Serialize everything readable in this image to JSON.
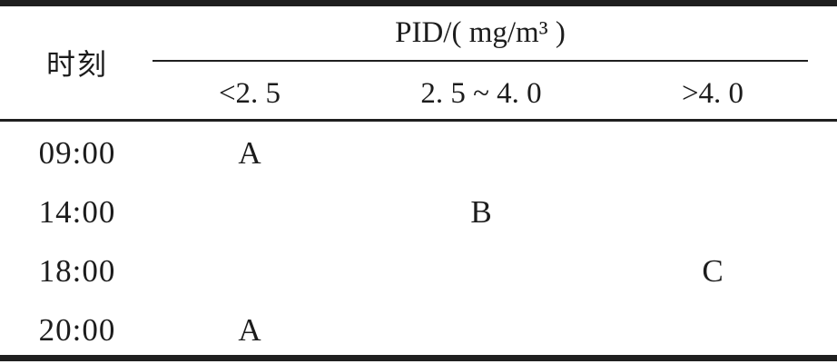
{
  "figure": {
    "corner_header": "时刻",
    "group_header": "PID/( mg/m³ )",
    "sub_headers": [
      "<2. 5",
      "2. 5 ~ 4. 0",
      ">4. 0"
    ],
    "rows": [
      {
        "time": "09:00",
        "cells": [
          "A",
          "",
          ""
        ]
      },
      {
        "time": "14:00",
        "cells": [
          "",
          "B",
          ""
        ]
      },
      {
        "time": "18:00",
        "cells": [
          "",
          "",
          "C"
        ]
      },
      {
        "time": "20:00",
        "cells": [
          "A",
          "",
          ""
        ]
      }
    ],
    "colors": {
      "ink": "#1c1c1c",
      "rule": "#1f1f1f",
      "background": "#ffffff"
    }
  }
}
